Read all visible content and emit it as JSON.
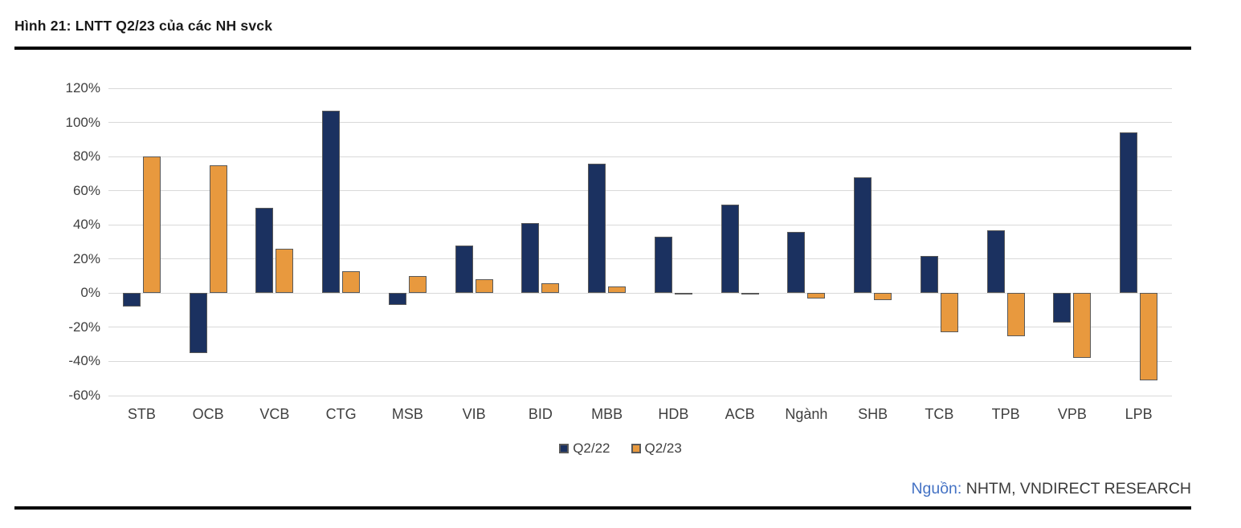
{
  "page": {
    "title": "Hình 21: LNTT Q2/23 của các NH svck",
    "source_prefix": "Nguồn:",
    "source_text": " NHTM, VNDIRECT RESEARCH"
  },
  "colors": {
    "series_q2_22": "#1b3160",
    "series_q2_23": "#e8993e",
    "bar_border": "#595959",
    "gridline": "#d9d9d9",
    "axis_text": "#404040",
    "rule": "#000000",
    "source_prefix_blue": "#4472c4"
  },
  "chart_data": {
    "type": "bar",
    "title": "Hình 21: LNTT Q2/23 của các NH svck",
    "categories": [
      "STB",
      "OCB",
      "VCB",
      "CTG",
      "MSB",
      "VIB",
      "BID",
      "MBB",
      "HDB",
      "ACB",
      "Ngành",
      "SHB",
      "TCB",
      "TPB",
      "VPB",
      "LPB"
    ],
    "series": [
      {
        "name": "Q2/22",
        "color": "#1b3160",
        "values": [
          -8,
          -35,
          50,
          107,
          -7,
          28,
          41,
          76,
          33,
          52,
          36,
          68,
          22,
          37,
          -17,
          94
        ]
      },
      {
        "name": "Q2/23",
        "color": "#e8993e",
        "values": [
          80,
          75,
          26,
          13,
          10,
          8,
          6,
          4,
          -1,
          -1,
          -3,
          -4,
          -23,
          -25,
          -38,
          -51
        ]
      }
    ],
    "ylim": [
      -60,
      120
    ],
    "ytick_step": 20,
    "ytick_labels": [
      "120%",
      "100%",
      "80%",
      "60%",
      "40%",
      "20%",
      "0%",
      "-20%",
      "-40%",
      "-60%"
    ],
    "xlabel": "",
    "ylabel": "",
    "grid": true,
    "legend_position": "bottom"
  }
}
